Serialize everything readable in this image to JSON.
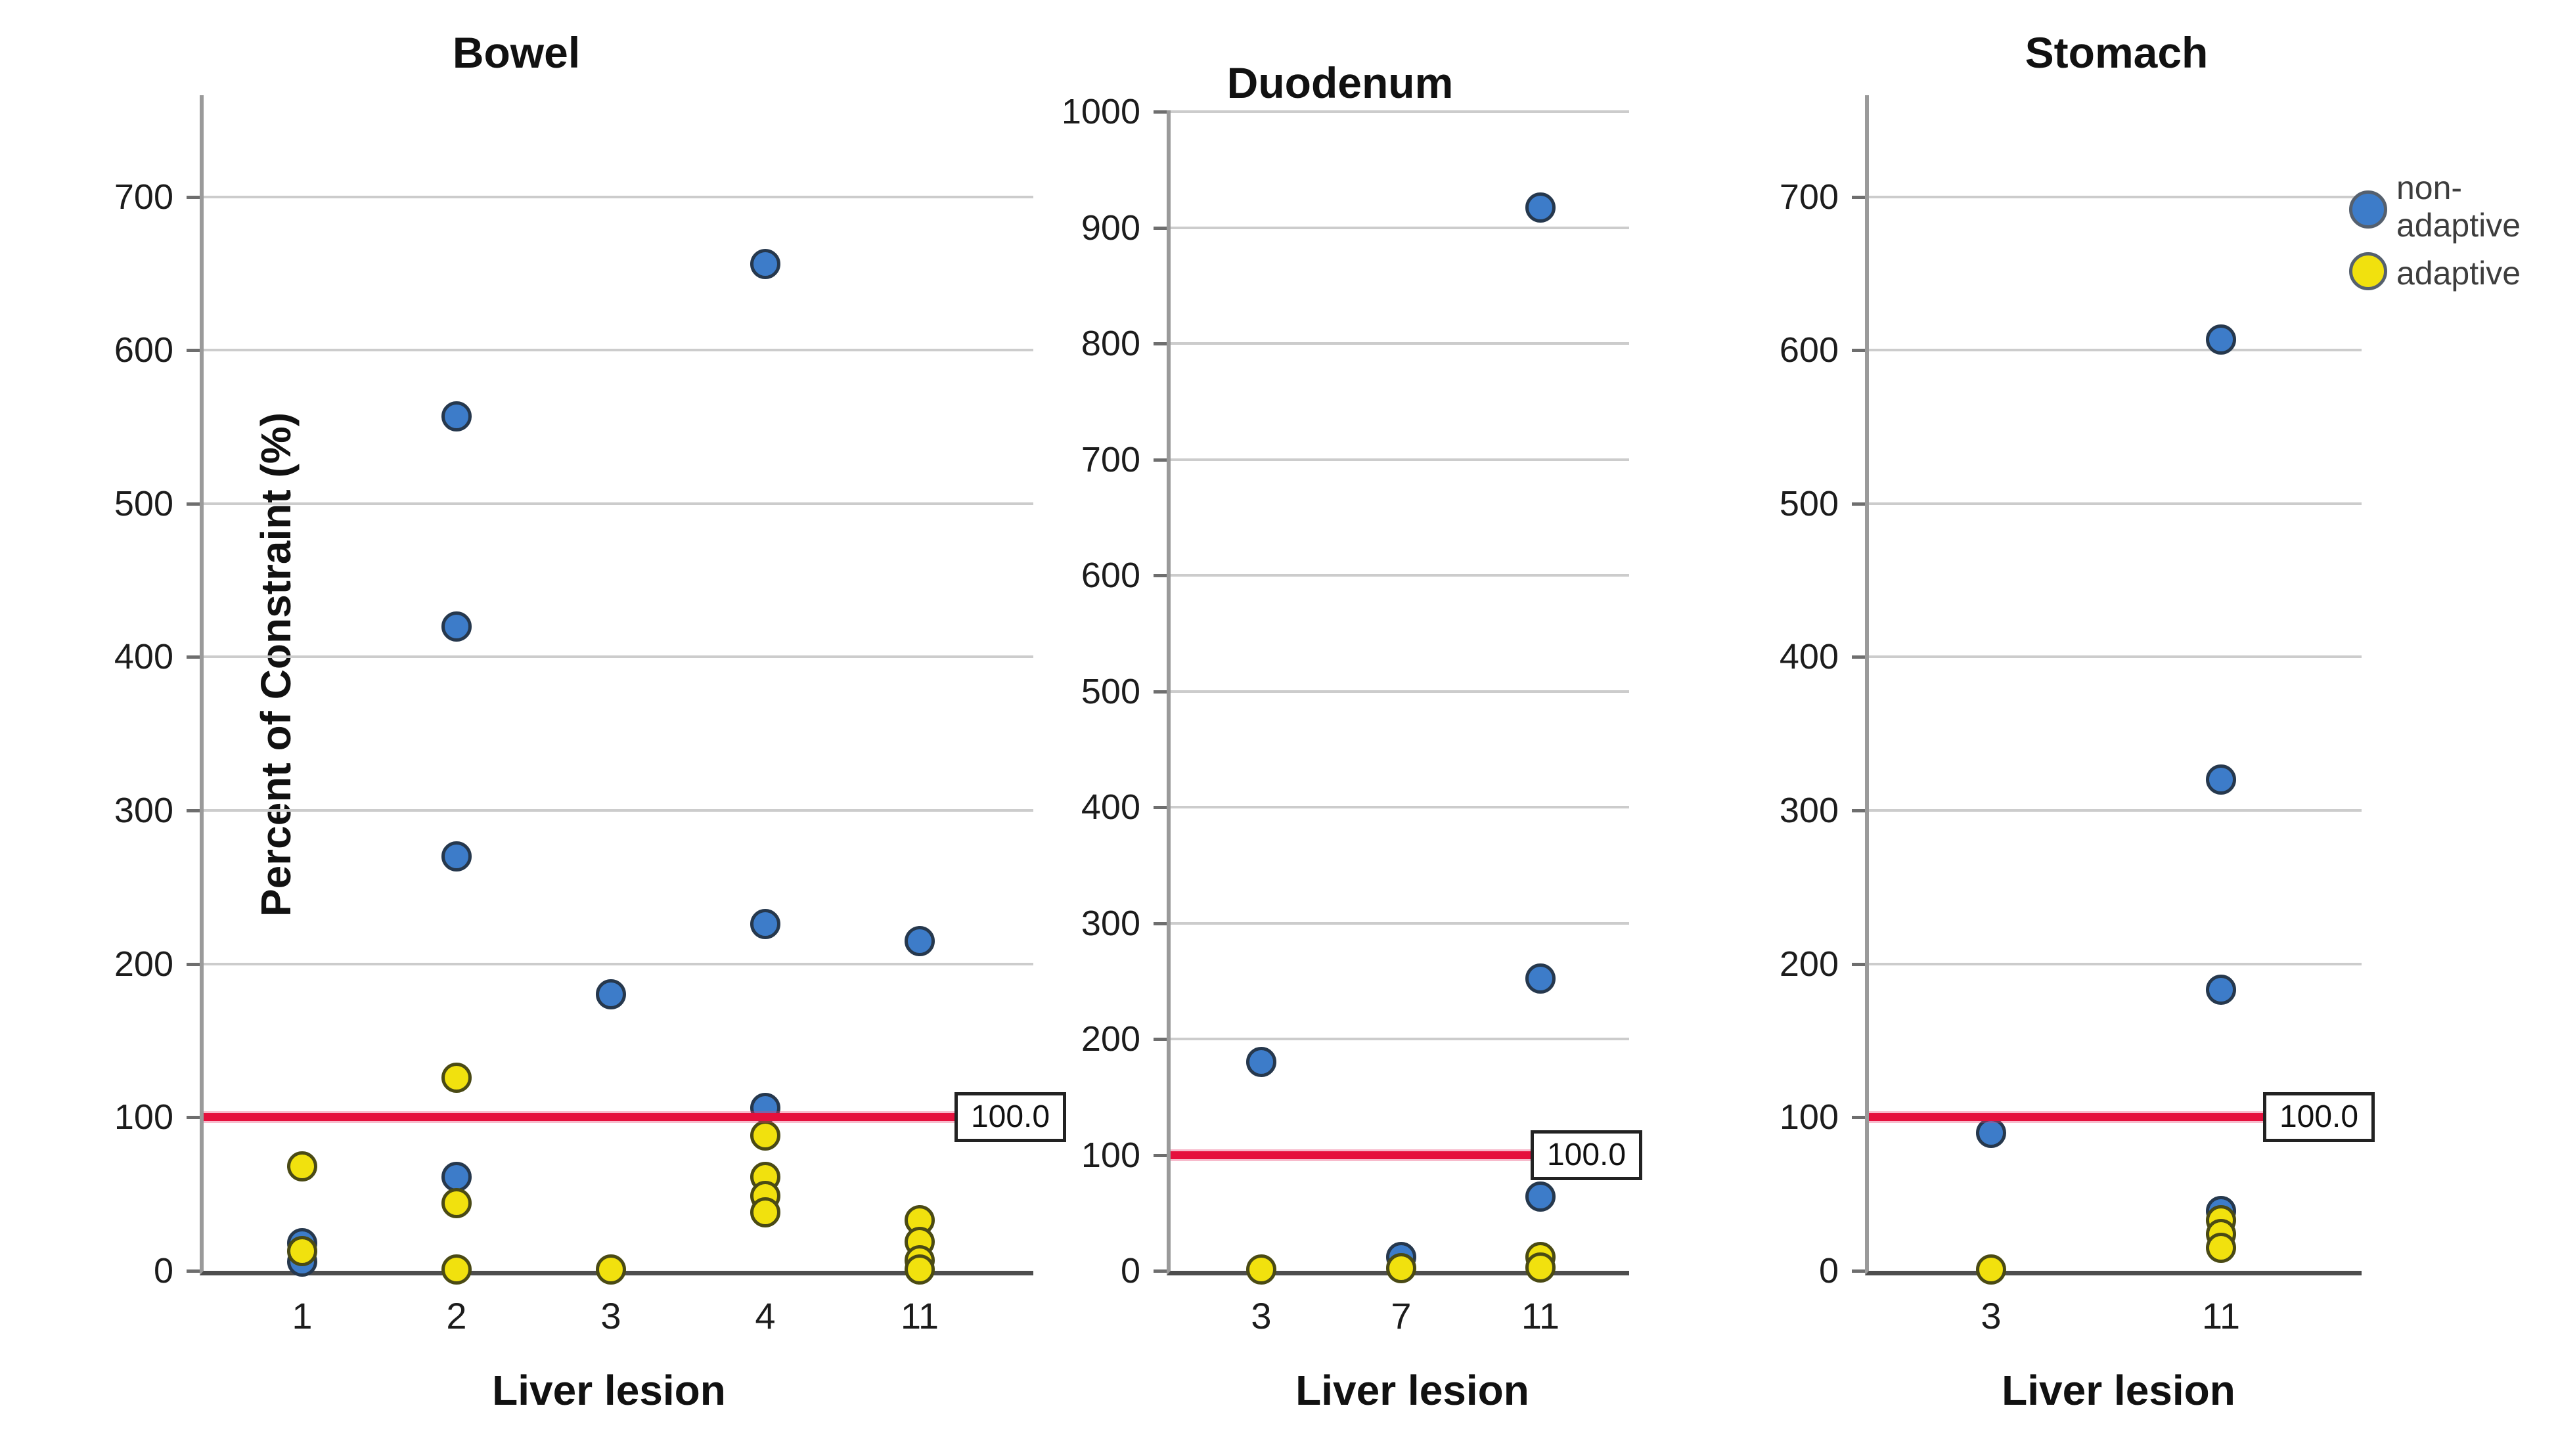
{
  "figure": {
    "y_axis_title": "Percent of Constraint (%)",
    "x_axis_title": "Liver lesion",
    "reference_line": {
      "value": 100.0,
      "label": "100.0",
      "color": "#e5103d"
    },
    "colors": {
      "non_adaptive_fill": "#3d7cc9",
      "non_adaptive_stroke": "#26384d",
      "adaptive_fill": "#f1e10e",
      "adaptive_stroke": "#4a4a15",
      "gridline": "#cccccc",
      "reference": "#e5103d"
    },
    "legend": {
      "items": [
        {
          "series": "non-adaptive",
          "label": "non-\nadaptive",
          "color": "#3d7cc9"
        },
        {
          "series": "adaptive",
          "label": "adaptive",
          "color": "#f1e10e"
        }
      ]
    }
  },
  "chart_data": [
    {
      "type": "scatter",
      "title": "Bowel",
      "xlabel": "Liver lesion",
      "ylabel": "Percent of Constraint (%)",
      "categories": [
        "1",
        "2",
        "3",
        "4",
        "11"
      ],
      "ylim": [
        0,
        760
      ],
      "yticks": [
        0,
        100,
        200,
        300,
        400,
        500,
        600,
        700
      ],
      "grid": "horizontal",
      "legend_position": "none",
      "ref_line": 100.0,
      "series": [
        {
          "name": "non-adaptive",
          "points": [
            [
              "1",
              18
            ],
            [
              "1",
              6
            ],
            [
              "2",
              557
            ],
            [
              "2",
              420
            ],
            [
              "2",
              270
            ],
            [
              "2",
              61
            ],
            [
              "3",
              180
            ],
            [
              "4",
              656
            ],
            [
              "4",
              226
            ],
            [
              "4",
              106
            ],
            [
              "11",
              215
            ]
          ]
        },
        {
          "name": "adaptive",
          "points": [
            [
              "1",
              68
            ],
            [
              "1",
              13
            ],
            [
              "2",
              126
            ],
            [
              "2",
              44
            ],
            [
              "2",
              1
            ],
            [
              "3",
              1
            ],
            [
              "4",
              88
            ],
            [
              "4",
              61
            ],
            [
              "4",
              49
            ],
            [
              "4",
              38
            ],
            [
              "11",
              33
            ],
            [
              "11",
              19
            ],
            [
              "11",
              7
            ],
            [
              "11",
              1
            ]
          ]
        }
      ]
    },
    {
      "type": "scatter",
      "title": "Duodenum",
      "xlabel": "Liver lesion",
      "ylabel": "",
      "categories": [
        "3",
        "7",
        "11"
      ],
      "ylim": [
        0,
        1000
      ],
      "yticks": [
        0,
        100,
        200,
        300,
        400,
        500,
        600,
        700,
        800,
        900,
        1000
      ],
      "grid": "horizontal",
      "legend_position": "none",
      "ref_line": 100.0,
      "series": [
        {
          "name": "non-adaptive",
          "points": [
            [
              "3",
              180
            ],
            [
              "7",
              12
            ],
            [
              "11",
              917
            ],
            [
              "11",
              252
            ],
            [
              "11",
              64
            ]
          ]
        },
        {
          "name": "adaptive",
          "points": [
            [
              "3",
              1
            ],
            [
              "7",
              2
            ],
            [
              "11",
              12
            ],
            [
              "11",
              3
            ]
          ]
        }
      ]
    },
    {
      "type": "scatter",
      "title": "Stomach",
      "xlabel": "Liver lesion",
      "ylabel": "",
      "categories": [
        "3",
        "11"
      ],
      "ylim": [
        0,
        760
      ],
      "yticks": [
        0,
        100,
        200,
        300,
        400,
        500,
        600,
        700
      ],
      "grid": "horizontal",
      "legend_position": "right-of-plot",
      "ref_line": 100.0,
      "series": [
        {
          "name": "non-adaptive",
          "points": [
            [
              "3",
              90
            ],
            [
              "11",
              607
            ],
            [
              "11",
              320
            ],
            [
              "11",
              183
            ],
            [
              "11",
              39
            ]
          ]
        },
        {
          "name": "adaptive",
          "points": [
            [
              "3",
              1
            ],
            [
              "11",
              33
            ],
            [
              "11",
              24
            ],
            [
              "11",
              15
            ]
          ]
        }
      ]
    }
  ]
}
